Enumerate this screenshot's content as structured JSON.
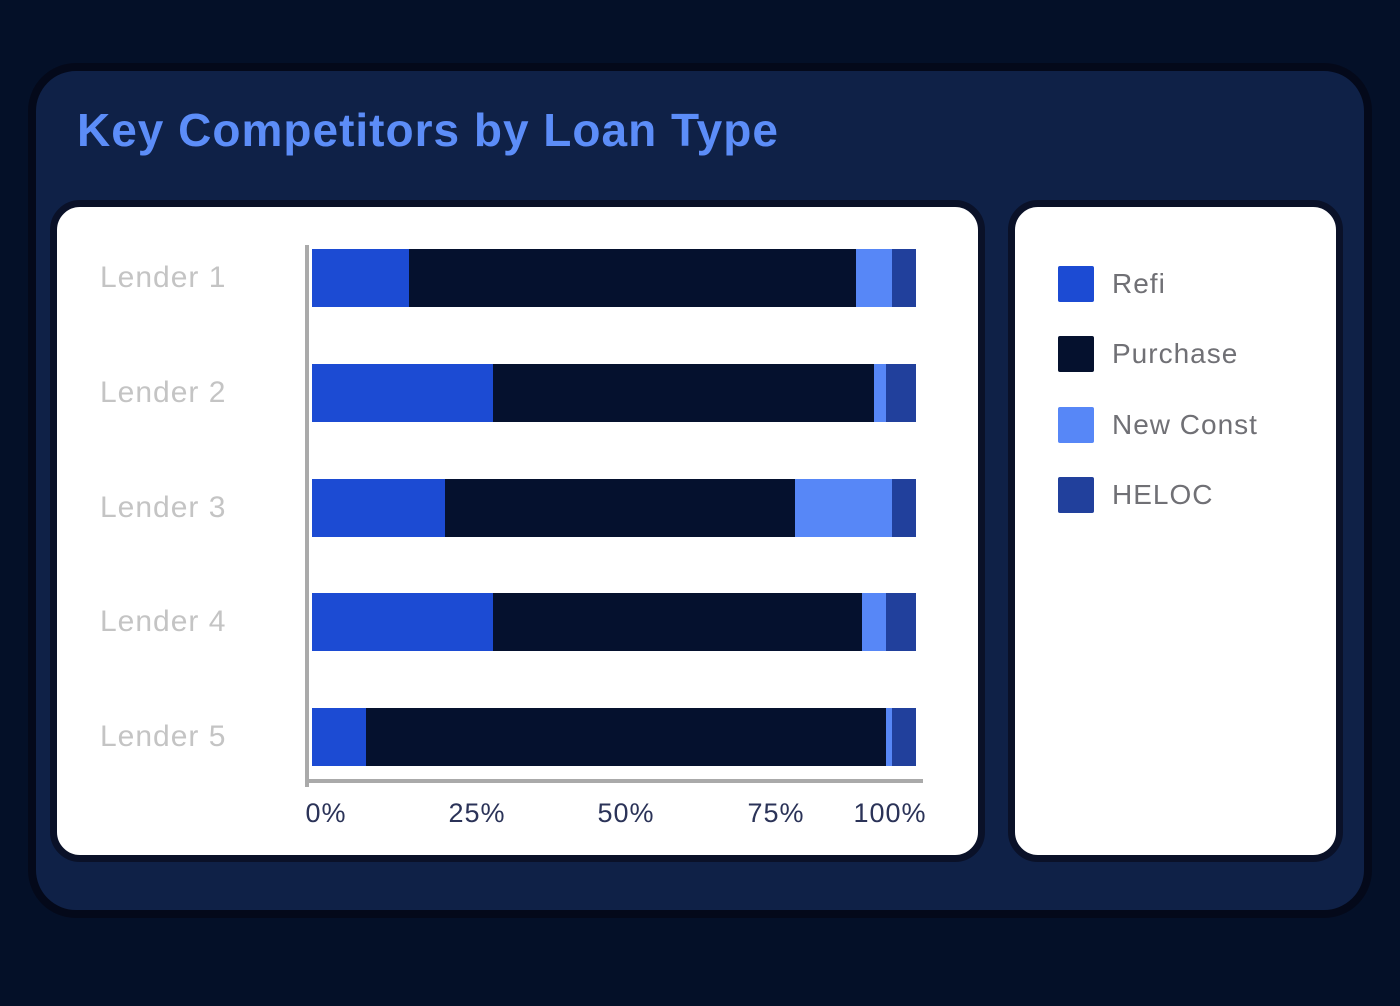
{
  "title": "Key Competitors by Loan Type",
  "colors": {
    "page_bg": "#041028",
    "card_bg": "#0F2147",
    "card_border": "#04091A",
    "panel_bg": "#FFFFFF",
    "panel_border": "#0A1128",
    "title_text": "#5C8DF8",
    "axis_line": "#AAAAAA",
    "lender_label": "#C4C4C4",
    "tick_label": "#2B3358",
    "legend_label": "#707075"
  },
  "chart_data": {
    "type": "bar",
    "orientation": "horizontal",
    "stacked": true,
    "units": "percent",
    "title": "Key Competitors by Loan Type",
    "categories": [
      "Lender 1",
      "Lender 2",
      "Lender 3",
      "Lender 4",
      "Lender 5"
    ],
    "series": [
      {
        "name": "Refi",
        "color": "#1C4BD3",
        "values": [
          16,
          30,
          22,
          30,
          9
        ]
      },
      {
        "name": "Purchase",
        "color": "#05112E",
        "values": [
          74,
          63,
          58,
          61,
          86
        ]
      },
      {
        "name": "New Const",
        "color": "#5787F7",
        "values": [
          6,
          2,
          16,
          4,
          1
        ]
      },
      {
        "name": "HELOC",
        "color": "#21409C",
        "values": [
          4,
          5,
          4,
          5,
          4
        ]
      }
    ],
    "x_tick_labels": [
      "0%",
      "25%",
      "50%",
      "75%",
      "100%"
    ],
    "xlim": [
      0,
      100
    ],
    "grid": false,
    "legend_position": "right"
  }
}
